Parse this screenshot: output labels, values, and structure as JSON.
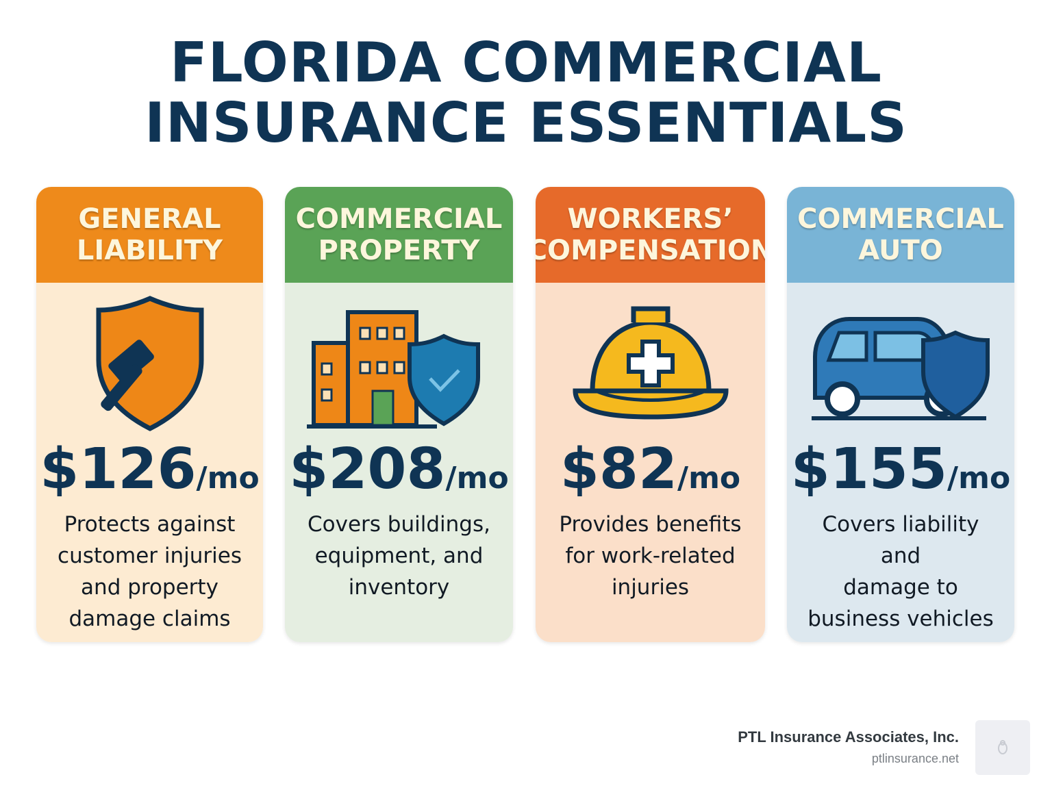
{
  "title": {
    "line1": "FLORIDA COMMERCIAL",
    "line2": "INSURANCE ESSENTIALS"
  },
  "cards": [
    {
      "head": [
        "GENERAL",
        "LIABILITY"
      ],
      "icon": "gavel-shield-icon",
      "price": "$126",
      "unit": "/mo",
      "desc": [
        "Protects against",
        "customer injuries",
        "and property",
        "damage claims"
      ],
      "head_color": "#ee8a1b",
      "body_color": "#fdebd2"
    },
    {
      "head": [
        "COMMERCIAL",
        "PROPERTY"
      ],
      "icon": "building-shield-icon",
      "price": "$208",
      "unit": "/mo",
      "desc": [
        "Covers buildings,",
        "equipment, and",
        "inventory"
      ],
      "head_color": "#5aa356",
      "body_color": "#e5eee1"
    },
    {
      "head": [
        "WORKERS’",
        "COMPENSATION"
      ],
      "icon": "hard-hat-icon",
      "price": "$82",
      "unit": "/mo",
      "desc": [
        "Provides benefits",
        "for work-related",
        "injuries"
      ],
      "head_color": "#e66a2a",
      "body_color": "#fbdfc9"
    },
    {
      "head": [
        "COMMERCIAL",
        "AUTO"
      ],
      "icon": "van-shield-icon",
      "price": "$155",
      "unit": "/mo",
      "desc": [
        "Covers liability and",
        "damage to",
        "business vehicles"
      ],
      "head_color": "#79b4d6",
      "body_color": "#dde8ef"
    }
  ],
  "footer": {
    "company": "PTL Insurance Associates, Inc.",
    "url": "ptlinsurance.net"
  }
}
